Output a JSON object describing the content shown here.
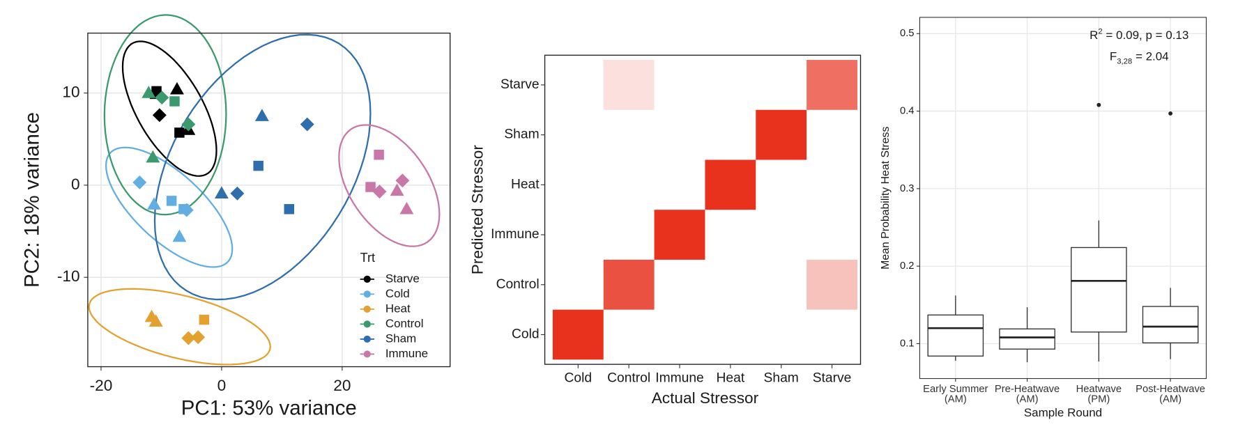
{
  "chart_data": [
    {
      "type": "scatter",
      "x_label": "PC1: 53% variance",
      "y_label": "PC2: 18% variance",
      "xlim": [
        -22.2,
        37.9
      ],
      "ylim": [
        -19.7,
        16.5
      ],
      "xticks": [
        -20,
        0,
        20
      ],
      "yticks": [
        -10,
        0,
        10
      ],
      "grid": true,
      "legend_title": "Trt",
      "legend_position": "bottom-right",
      "series": [
        {
          "name": "Starve",
          "color": "#000000",
          "x": [
            -10.8,
            -10.8,
            -7.4,
            -10.3,
            -7.0,
            -5.5
          ],
          "y": [
            10.2,
            9.9,
            10.4,
            7.6,
            5.7,
            6.0
          ],
          "shapes": [
            "square",
            "triangle",
            "triangle",
            "diamond",
            "square",
            "triangle"
          ]
        },
        {
          "name": "Cold",
          "color": "#62aee2",
          "x": [
            -13.6,
            -11.2,
            -8.3,
            -5.8,
            -6.3,
            -7.0
          ],
          "y": [
            0.3,
            -2.1,
            -1.7,
            -2.7,
            -2.6,
            -5.6
          ],
          "shapes": [
            "diamond",
            "triangle",
            "square",
            "diamond",
            "square",
            "triangle"
          ]
        },
        {
          "name": "Heat",
          "color": "#e3a130",
          "x": [
            -11.6,
            -10.9,
            -2.9,
            -5.5,
            -3.9
          ],
          "y": [
            -14.3,
            -14.8,
            -14.6,
            -16.6,
            -16.5
          ],
          "shapes": [
            "triangle",
            "triangle",
            "square",
            "diamond",
            "diamond"
          ]
        },
        {
          "name": "Control",
          "color": "#3a9a6e",
          "x": [
            -12.1,
            -9.9,
            -7.8,
            -5.5,
            -11.4
          ],
          "y": [
            10.0,
            9.5,
            9.1,
            6.6,
            3.0
          ],
          "shapes": [
            "triangle",
            "diamond",
            "square",
            "diamond",
            "triangle"
          ]
        },
        {
          "name": "Sham",
          "color": "#2f6eac",
          "x": [
            6.7,
            14.2,
            6.1,
            0.0,
            2.6,
            11.2
          ],
          "y": [
            7.5,
            6.6,
            2.1,
            -0.9,
            -0.9,
            -2.6
          ],
          "shapes": [
            "triangle",
            "diamond",
            "square",
            "triangle",
            "diamond",
            "square"
          ]
        },
        {
          "name": "Immune",
          "color": "#c877a6",
          "x": [
            26.1,
            24.7,
            26.2,
            30.0,
            29.1,
            30.7
          ],
          "y": [
            3.3,
            -0.2,
            -0.7,
            0.5,
            -0.6,
            -2.6
          ],
          "shapes": [
            "square",
            "square",
            "diamond",
            "diamond",
            "triangle",
            "triangle"
          ]
        }
      ]
    },
    {
      "type": "heatmap",
      "x_label": "Actual Stressor",
      "y_label": "Predicted Stressor",
      "x_categories": [
        "Cold",
        "Control",
        "Immune",
        "Heat",
        "Sham",
        "Starve"
      ],
      "y_categories": [
        "Cold",
        "Control",
        "Immune",
        "Heat",
        "Sham",
        "Starve"
      ],
      "values": [
        [
          1,
          null,
          null,
          null,
          null,
          null
        ],
        [
          null,
          0.85,
          null,
          null,
          null,
          0.3
        ],
        [
          null,
          null,
          1,
          null,
          null,
          null
        ],
        [
          null,
          null,
          null,
          1,
          null,
          null
        ],
        [
          null,
          null,
          null,
          null,
          1,
          null
        ],
        [
          null,
          0.15,
          null,
          null,
          null,
          0.7
        ]
      ],
      "zlim": [
        0,
        1
      ],
      "color_low": "#ffffff",
      "color_high": "#e8321e"
    },
    {
      "type": "box",
      "x_label": "Sample Round",
      "y_label": "Mean Probability Heat Stress",
      "categories": [
        "Early Summer\n(AM)",
        "Pre-Heatwave\n(AM)",
        "Heatwave\n(PM)",
        "Post-Heatwave\n(AM)"
      ],
      "boxes": [
        {
          "low": 0.078,
          "q1": 0.084,
          "median": 0.12,
          "q3": 0.137,
          "high": 0.162,
          "outliers": []
        },
        {
          "low": 0.076,
          "q1": 0.093,
          "median": 0.108,
          "q3": 0.119,
          "high": 0.147,
          "outliers": []
        },
        {
          "low": 0.077,
          "q1": 0.115,
          "median": 0.181,
          "q3": 0.224,
          "high": 0.259,
          "outliers": [
            0.408
          ]
        },
        {
          "low": 0.08,
          "q1": 0.101,
          "median": 0.122,
          "q3": 0.148,
          "high": 0.172,
          "outliers": [
            0.397
          ]
        }
      ],
      "ylim": [
        0.055,
        0.521
      ],
      "yticks": [
        0.1,
        0.2,
        0.3,
        0.4,
        0.5
      ],
      "grid": true,
      "annotations": [
        {
          "text": "R",
          "sup": "2",
          "rest": " = 0.09, p = 0.13"
        },
        {
          "text": "F",
          "sub": "3,28",
          "rest": " = 2.04"
        }
      ]
    }
  ]
}
